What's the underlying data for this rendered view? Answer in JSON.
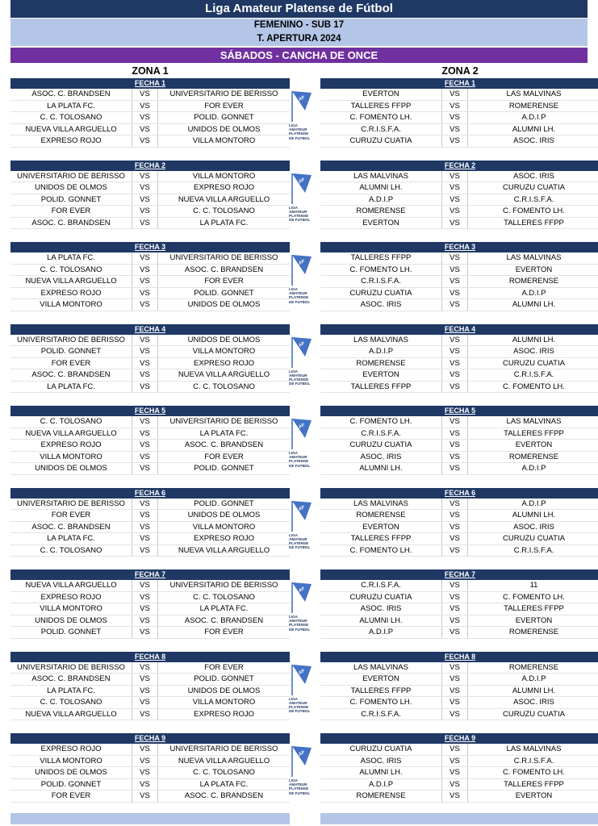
{
  "header": {
    "title": "Liga Amateur Platense de Fútbol",
    "category": "FEMENINO - SUB 17",
    "tournament": "T. APERTURA 2024",
    "venue": "SÁBADOS - CANCHA DE ONCE"
  },
  "zones": {
    "z1_title": "ZONA 1",
    "z2_title": "ZONA 2"
  },
  "logo": {
    "flag_text": "LAP",
    "caption": [
      "LIGA",
      "AMATEUR",
      "PLATENSE",
      "DE FUTBOL"
    ],
    "color": "#4472c4"
  },
  "colors": {
    "navy": "#1f3864",
    "light_blue": "#b4c6e7",
    "purple": "#7030a0"
  },
  "fechas": [
    {
      "label": "FECHA 1",
      "z1": [
        [
          "ASOC. C. BRANDSEN",
          "VS",
          "UNIVERSITARIO DE BERISSO"
        ],
        [
          "LA PLATA FC.",
          "VS",
          "FOR EVER"
        ],
        [
          "C. C. TOLOSANO",
          "VS",
          "POLID. GONNET"
        ],
        [
          "NUEVA VILLA ARGUELLO",
          "VS",
          "UNIDOS DE OLMOS"
        ],
        [
          "EXPRESO ROJO",
          "VS",
          "VILLA MONTORO"
        ]
      ],
      "z2": [
        [
          "EVERTON",
          "VS",
          "LAS MALVINAS"
        ],
        [
          "TALLERES FFPP",
          "VS",
          "ROMERENSE"
        ],
        [
          "C. FOMENTO LH.",
          "VS",
          "A.D.I.P"
        ],
        [
          "C.R.I.S.F.A.",
          "VS",
          "ALUMNI LH."
        ],
        [
          "CURUZU CUATIA",
          "VS",
          "ASOC. IRIS"
        ]
      ]
    },
    {
      "label": "FECHA 2",
      "z1": [
        [
          "UNIVERSITARIO DE BERISSO",
          "VS",
          "VILLA MONTORO"
        ],
        [
          "UNIDOS DE OLMOS",
          "VS",
          "EXPRESO ROJO"
        ],
        [
          "POLID. GONNET",
          "VS",
          "NUEVA VILLA ARGUELLO"
        ],
        [
          "FOR EVER",
          "VS",
          "C. C. TOLOSANO"
        ],
        [
          "ASOC. C. BRANDSEN",
          "VS",
          "LA PLATA FC."
        ]
      ],
      "z2": [
        [
          "LAS MALVINAS",
          "VS",
          "ASOC. IRIS"
        ],
        [
          "ALUMNI LH.",
          "VS",
          "CURUZU CUATIA"
        ],
        [
          "A.D.I.P",
          "VS",
          "C.R.I.S.F.A."
        ],
        [
          "ROMERENSE",
          "VS",
          "C. FOMENTO LH."
        ],
        [
          "EVERTON",
          "VS",
          "TALLERES FFPP"
        ]
      ]
    },
    {
      "label": "FECHA 3",
      "z1": [
        [
          "LA PLATA FC.",
          "VS",
          "UNIVERSITARIO DE BERISSO"
        ],
        [
          "C. C. TOLOSANO",
          "VS",
          "ASOC. C. BRANDSEN"
        ],
        [
          "NUEVA VILLA ARGUELLO",
          "VS",
          "FOR EVER"
        ],
        [
          "EXPRESO ROJO",
          "VS",
          "POLID. GONNET"
        ],
        [
          "VILLA MONTORO",
          "VS",
          "UNIDOS DE OLMOS"
        ]
      ],
      "z2": [
        [
          "TALLERES FFPP",
          "VS",
          "LAS MALVINAS"
        ],
        [
          "C. FOMENTO LH.",
          "VS",
          "EVERTON"
        ],
        [
          "C.R.I.S.F.A.",
          "VS",
          "ROMERENSE"
        ],
        [
          "CURUZU CUATIA",
          "VS",
          "A.D.I.P"
        ],
        [
          "ASOC. IRIS",
          "VS",
          "ALUMNI LH."
        ]
      ]
    },
    {
      "label": "FECHA 4",
      "z1": [
        [
          "UNIVERSITARIO DE BERISSO",
          "VS",
          "UNIDOS DE OLMOS"
        ],
        [
          "POLID. GONNET",
          "VS",
          "VILLA MONTORO"
        ],
        [
          "FOR EVER",
          "VS",
          "EXPRESO ROJO"
        ],
        [
          "ASOC. C. BRANDSEN",
          "VS",
          "NUEVA VILLA ARGUELLO"
        ],
        [
          "LA PLATA FC.",
          "VS",
          "C. C. TOLOSANO"
        ]
      ],
      "z2": [
        [
          "LAS MALVINAS",
          "VS",
          "ALUMNI LH."
        ],
        [
          "A.D.I.P",
          "VS",
          "ASOC. IRIS"
        ],
        [
          "ROMERENSE",
          "VS",
          "CURUZU CUATIA"
        ],
        [
          "EVERTON",
          "VS",
          "C.R.I.S.F.A."
        ],
        [
          "TALLERES FFPP",
          "VS",
          "C. FOMENTO LH."
        ]
      ]
    },
    {
      "label": "FECHA 5",
      "z1": [
        [
          "C. C. TOLOSANO",
          "VS",
          "UNIVERSITARIO DE BERISSO"
        ],
        [
          "NUEVA VILLA ARGUELLO",
          "VS",
          "LA PLATA FC."
        ],
        [
          "EXPRESO ROJO",
          "VS",
          "ASOC. C. BRANDSEN"
        ],
        [
          "VILLA MONTORO",
          "VS",
          "FOR EVER"
        ],
        [
          "UNIDOS DE OLMOS",
          "VS",
          "POLID. GONNET"
        ]
      ],
      "z2": [
        [
          "C. FOMENTO LH.",
          "VS",
          "LAS MALVINAS"
        ],
        [
          "C.R.I.S.F.A.",
          "VS",
          "TALLERES FFPP"
        ],
        [
          "CURUZU CUATIA",
          "VS",
          "EVERTON"
        ],
        [
          "ASOC. IRIS",
          "VS",
          "ROMERENSE"
        ],
        [
          "ALUMNI LH.",
          "VS",
          "A.D.I.P"
        ]
      ]
    },
    {
      "label": "FECHA 6",
      "z1": [
        [
          "UNIVERSITARIO DE BERISSO",
          "VS",
          "POLID. GONNET"
        ],
        [
          "FOR EVER",
          "VS",
          "UNIDOS DE OLMOS"
        ],
        [
          "ASOC. C. BRANDSEN",
          "VS",
          "VILLA MONTORO"
        ],
        [
          "LA PLATA FC.",
          "VS",
          "EXPRESO ROJO"
        ],
        [
          "C. C. TOLOSANO",
          "VS",
          "NUEVA VILLA ARGUELLO"
        ]
      ],
      "z2": [
        [
          "LAS MALVINAS",
          "VS",
          "A.D.I.P"
        ],
        [
          "ROMERENSE",
          "VS",
          "ALUMNI LH."
        ],
        [
          "EVERTON",
          "VS",
          "ASOC. IRIS"
        ],
        [
          "TALLERES FFPP",
          "VS",
          "CURUZU CUATIA"
        ],
        [
          "C. FOMENTO LH.",
          "VS",
          "C.R.I.S.F.A."
        ]
      ]
    },
    {
      "label": "FECHA 7",
      "z1": [
        [
          "NUEVA VILLA ARGUELLO",
          "VS",
          "UNIVERSITARIO DE BERISSO"
        ],
        [
          "EXPRESO ROJO",
          "VS",
          "C. C. TOLOSANO"
        ],
        [
          "VILLA MONTORO",
          "VS",
          "LA PLATA FC."
        ],
        [
          "UNIDOS DE OLMOS",
          "VS",
          "ASOC. C. BRANDSEN"
        ],
        [
          "POLID. GONNET",
          "VS",
          "FOR EVER"
        ]
      ],
      "z2": [
        [
          "C.R.I.S.F.A.",
          "VS",
          "11"
        ],
        [
          "CURUZU CUATIA",
          "VS",
          "C. FOMENTO LH."
        ],
        [
          "ASOC. IRIS",
          "VS",
          "TALLERES FFPP"
        ],
        [
          "ALUMNI LH.",
          "VS",
          "EVERTON"
        ],
        [
          "A.D.I.P",
          "VS",
          "ROMERENSE"
        ]
      ]
    },
    {
      "label": "FECHA 8",
      "z1": [
        [
          "UNIVERSITARIO DE BERISSO",
          "VS",
          "FOR EVER"
        ],
        [
          "ASOC. C. BRANDSEN",
          "VS",
          "POLID. GONNET"
        ],
        [
          "LA PLATA FC.",
          "VS",
          "UNIDOS DE OLMOS"
        ],
        [
          "C. C. TOLOSANO",
          "VS",
          "VILLA MONTORO"
        ],
        [
          "NUEVA VILLA ARGUELLO",
          "VS",
          "EXPRESO ROJO"
        ]
      ],
      "z2": [
        [
          "LAS MALVINAS",
          "VS",
          "ROMERENSE"
        ],
        [
          "EVERTON",
          "VS",
          "A.D.I.P"
        ],
        [
          "TALLERES FFPP",
          "VS",
          "ALUMNI LH."
        ],
        [
          "C. FOMENTO LH.",
          "VS",
          "ASOC. IRIS"
        ],
        [
          "C.R.I.S.F.A.",
          "VS",
          "CURUZU CUATIA"
        ]
      ]
    },
    {
      "label": "FECHA 9",
      "z1": [
        [
          "EXPRESO ROJO",
          "VS",
          "UNIVERSITARIO DE BERISSO"
        ],
        [
          "VILLA MONTORO",
          "VS",
          "NUEVA VILLA ARGUELLO"
        ],
        [
          "UNIDOS DE OLMOS",
          "VS",
          "C. C. TOLOSANO"
        ],
        [
          "POLID. GONNET",
          "VS",
          "LA PLATA FC."
        ],
        [
          "FOR EVER",
          "VS",
          "ASOC. C. BRANDSEN"
        ]
      ],
      "z2": [
        [
          "CURUZU CUATIA",
          "VS",
          "LAS MALVINAS"
        ],
        [
          "ASOC. IRIS",
          "VS",
          "C.R.I.S.F.A."
        ],
        [
          "ALUMNI LH.",
          "VS",
          "C. FOMENTO LH."
        ],
        [
          "A.D.I.P",
          "VS",
          "TALLERES FFPP"
        ],
        [
          "ROMERENSE",
          "VS",
          "EVERTON"
        ]
      ]
    }
  ]
}
